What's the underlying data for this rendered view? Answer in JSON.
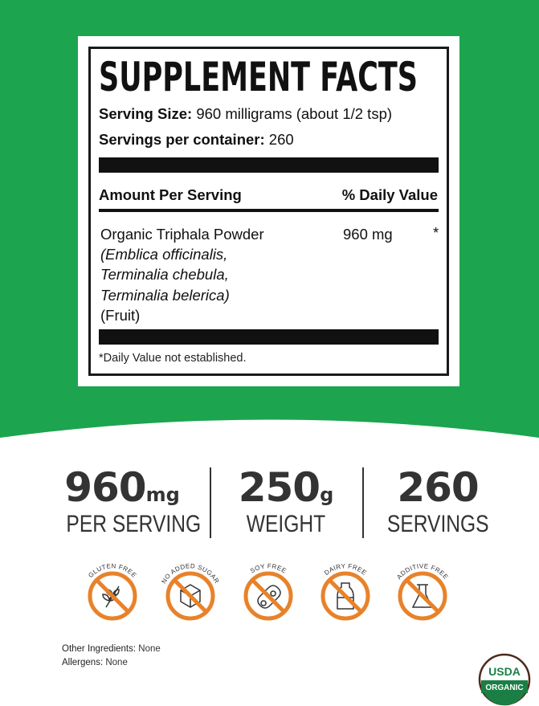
{
  "colors": {
    "green": "#1da44f",
    "orange": "#e8822a",
    "usda_green": "#1b7f45",
    "usda_brown": "#4a2a1a"
  },
  "facts": {
    "title": "SUPPLEMENT FACTS",
    "serving_size_label": "Serving Size:",
    "serving_size_value": "960 milligrams (about 1/2 tsp)",
    "servings_label": "Servings per container:",
    "servings_value": "260",
    "col_amount": "Amount Per Serving",
    "col_dv": "% Daily Value",
    "ingredient": {
      "name": "Organic Triphala Powder",
      "latin": [
        "(Emblica officinalis,",
        "Terminalia chebula,",
        "Terminalia belerica)"
      ],
      "part": "(Fruit)",
      "amount": "960 mg",
      "dv": "*"
    },
    "footnote": "*Daily Value not established."
  },
  "stats": [
    {
      "value": "960",
      "unit": "mg",
      "label": "PER SERVING"
    },
    {
      "value": "250",
      "unit": "g",
      "label": "WEIGHT"
    },
    {
      "value": "260",
      "unit": "",
      "label": "SERVINGS"
    }
  ],
  "badges": [
    {
      "label": "GLUTEN FREE",
      "icon": "wheat-icon"
    },
    {
      "label": "NO ADDED SUGAR",
      "icon": "sugar-cube-icon"
    },
    {
      "label": "SOY FREE",
      "icon": "soybean-icon"
    },
    {
      "label": "DAIRY FREE",
      "icon": "milk-bottle-icon"
    },
    {
      "label": "ADDITIVE FREE",
      "icon": "flask-icon"
    }
  ],
  "other_ingredients_label": "Other Ingredients:",
  "other_ingredients_value": "None",
  "allergens_label": "Allergens:",
  "allergens_value": "None",
  "usda": {
    "top": "USDA",
    "bottom": "ORGANIC"
  }
}
